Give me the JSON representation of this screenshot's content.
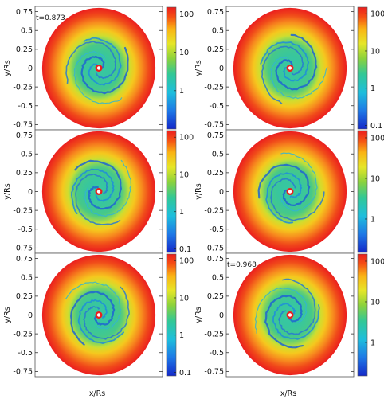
{
  "chart_data": {
    "type": "heatmap",
    "layout": "3 rows x 2 columns of face-on disk density maps",
    "xlabel": "x/Rs",
    "ylabel": "y/Rs",
    "xlim": [
      -0.9,
      0.9
    ],
    "ylim": [
      -0.82,
      0.82
    ],
    "y_ticks": [
      0.75,
      0.5,
      0.25,
      0,
      -0.25,
      -0.5,
      -0.75
    ],
    "y_tick_labels": [
      "0.75",
      "0.5",
      "0.25",
      "0",
      "-0.25",
      "-0.5",
      "-0.75"
    ],
    "colorscale": "log",
    "colormap": [
      "#1428c8",
      "#1ea0e6",
      "#28c8a0",
      "#78d24b",
      "#dce628",
      "#fab414",
      "#f55014",
      "#eb1e1e"
    ],
    "panels": [
      {
        "id": "p1",
        "row": 0,
        "col": 0,
        "time_label": "t=0.873",
        "colorbar": {
          "range": [
            0.1,
            150
          ],
          "ticks": [
            100,
            10,
            1
          ],
          "tick_labels": [
            "100",
            "10",
            "1"
          ]
        }
      },
      {
        "id": "p2",
        "row": 0,
        "col": 1,
        "time_label": "",
        "colorbar": {
          "range": [
            0.08,
            150
          ],
          "ticks": [
            100,
            10,
            1,
            0.1
          ],
          "tick_labels": [
            "100",
            "10",
            "1",
            "0.1"
          ]
        }
      },
      {
        "id": "p3",
        "row": 1,
        "col": 0,
        "time_label": "",
        "colorbar": {
          "range": [
            0.08,
            150
          ],
          "ticks": [
            100,
            10,
            1,
            0.1
          ],
          "tick_labels": [
            "100",
            "10",
            "1",
            "0.1"
          ]
        }
      },
      {
        "id": "p4",
        "row": 1,
        "col": 1,
        "time_label": "",
        "colorbar": {
          "range": [
            0.15,
            150
          ],
          "ticks": [
            100,
            10,
            1
          ],
          "tick_labels": [
            "100",
            "10",
            "1"
          ]
        }
      },
      {
        "id": "p5",
        "row": 2,
        "col": 0,
        "time_label": "",
        "colorbar": {
          "range": [
            0.08,
            150
          ],
          "ticks": [
            100,
            10,
            1,
            0.1
          ],
          "tick_labels": [
            "100",
            "10",
            "1",
            "0.1"
          ]
        }
      },
      {
        "id": "p6",
        "row": 2,
        "col": 1,
        "time_label": "t=0.968",
        "colorbar": {
          "range": [
            0.15,
            150
          ],
          "ticks": [
            100,
            10,
            1
          ],
          "tick_labels": [
            "100",
            "10",
            "1"
          ]
        }
      }
    ],
    "bottom_labels": [
      "x/Rs",
      "x/Rs"
    ]
  }
}
